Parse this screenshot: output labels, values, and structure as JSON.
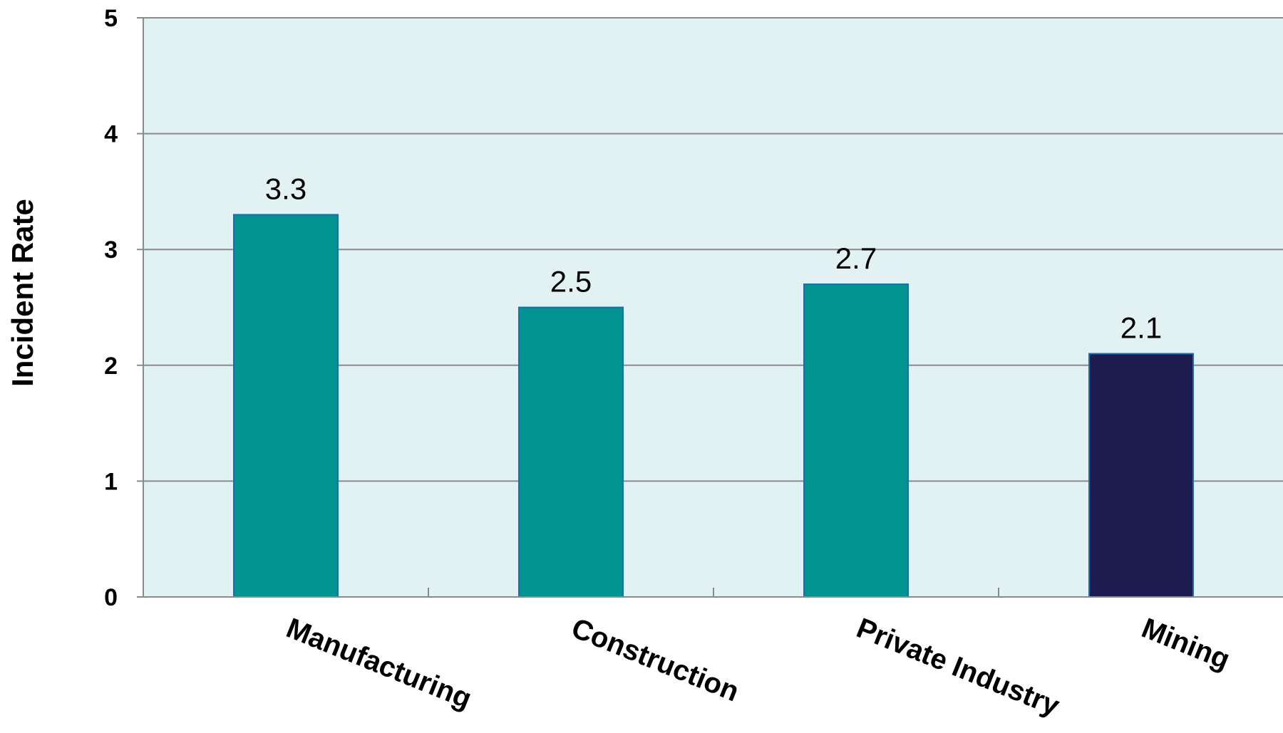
{
  "chart_data": {
    "type": "bar",
    "title": "",
    "xlabel": "",
    "ylabel": "Incident Rate",
    "categories": [
      "Manufacturing",
      "Construction",
      "Private Industry",
      "Mining"
    ],
    "values": [
      3.3,
      2.5,
      2.7,
      2.1
    ],
    "value_labels": [
      "3.3",
      "2.5",
      "2.7",
      "2.1"
    ],
    "ylim": [
      0,
      5
    ],
    "yticks": [
      0,
      1,
      2,
      3,
      4,
      5
    ],
    "grid": true,
    "legend": "none",
    "colors": {
      "plot_background": "#e2f2f2",
      "bar_default": "#009390",
      "bar_highlight": "#1c1c4e",
      "bar_edge": "#1a6fb0",
      "grid": "#8a8a8a",
      "axis": "#8a8a8a"
    },
    "highlight_category": "Mining"
  }
}
